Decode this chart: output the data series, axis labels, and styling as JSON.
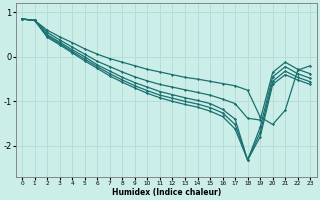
{
  "xlabel": "Humidex (Indice chaleur)",
  "bg_color": "#cceee8",
  "grid_color": "#b8ddd8",
  "line_color": "#1a7070",
  "xlim": [
    -0.5,
    23.5
  ],
  "ylim": [
    -2.7,
    1.2
  ],
  "yticks": [
    1,
    0,
    -1,
    -2
  ],
  "xticks": [
    0,
    1,
    2,
    3,
    4,
    5,
    6,
    7,
    8,
    9,
    10,
    11,
    12,
    13,
    14,
    15,
    16,
    17,
    18,
    19,
    20,
    21,
    22,
    23
  ],
  "series": [
    [
      0.85,
      0.82,
      0.6,
      0.45,
      0.32,
      0.18,
      0.06,
      -0.04,
      -0.12,
      -0.2,
      -0.28,
      -0.34,
      -0.4,
      -0.46,
      -0.5,
      -0.55,
      -0.6,
      -0.65,
      -0.75,
      -1.35,
      -1.52,
      -1.2,
      -0.3,
      -0.2
    ],
    [
      0.85,
      0.82,
      0.55,
      0.38,
      0.22,
      0.06,
      -0.1,
      -0.22,
      -0.34,
      -0.45,
      -0.54,
      -0.62,
      -0.68,
      -0.74,
      -0.8,
      -0.86,
      -0.95,
      -1.05,
      -1.38,
      -1.42,
      -0.35,
      -0.12,
      -0.28,
      -0.38
    ],
    [
      0.85,
      0.82,
      0.5,
      0.33,
      0.16,
      0.0,
      -0.18,
      -0.32,
      -0.46,
      -0.58,
      -0.68,
      -0.78,
      -0.85,
      -0.92,
      -0.98,
      -1.05,
      -1.18,
      -1.4,
      -2.32,
      -1.58,
      -0.45,
      -0.22,
      -0.38,
      -0.48
    ],
    [
      0.85,
      0.82,
      0.47,
      0.3,
      0.12,
      -0.05,
      -0.22,
      -0.38,
      -0.52,
      -0.65,
      -0.76,
      -0.86,
      -0.93,
      -1.0,
      -1.06,
      -1.14,
      -1.26,
      -1.52,
      -2.32,
      -1.7,
      -0.55,
      -0.32,
      -0.46,
      -0.56
    ],
    [
      0.85,
      0.82,
      0.44,
      0.27,
      0.09,
      -0.09,
      -0.26,
      -0.43,
      -0.57,
      -0.7,
      -0.82,
      -0.92,
      -1.0,
      -1.07,
      -1.13,
      -1.22,
      -1.34,
      -1.62,
      -2.32,
      -1.8,
      -0.62,
      -0.4,
      -0.52,
      -0.62
    ]
  ]
}
